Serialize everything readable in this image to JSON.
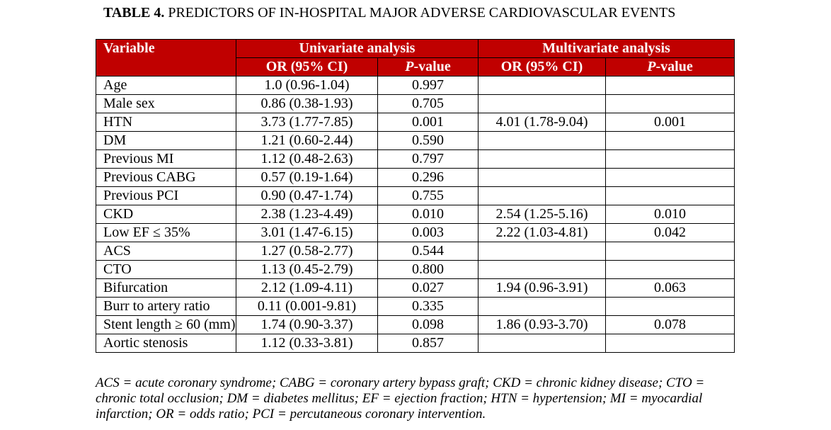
{
  "caption": {
    "label": "TABLE 4.",
    "title": " PREDICTORS OF IN-HOSPITAL MAJOR ADVERSE CARDIOVASCULAR EVENTS"
  },
  "table": {
    "headers": {
      "variable": "Variable",
      "univariate": "Univariate analysis",
      "multivariate": "Multivariate analysis",
      "or_ci": "OR (95% CI)",
      "p_italic": "P",
      "p_suffix": "-value"
    },
    "rows": [
      {
        "variable": "Age",
        "uni_or": "1.0 (0.96-1.04)",
        "uni_p": "0.997",
        "multi_or": "",
        "multi_p": ""
      },
      {
        "variable": "Male sex",
        "uni_or": "0.86 (0.38-1.93)",
        "uni_p": "0.705",
        "multi_or": "",
        "multi_p": ""
      },
      {
        "variable": "HTN",
        "uni_or": "3.73 (1.77-7.85)",
        "uni_p": "0.001",
        "multi_or": "4.01 (1.78-9.04)",
        "multi_p": "0.001"
      },
      {
        "variable": "DM",
        "uni_or": "1.21 (0.60-2.44)",
        "uni_p": "0.590",
        "multi_or": "",
        "multi_p": ""
      },
      {
        "variable": "Previous MI",
        "uni_or": "1.12 (0.48-2.63)",
        "uni_p": "0.797",
        "multi_or": "",
        "multi_p": ""
      },
      {
        "variable": "Previous CABG",
        "uni_or": "0.57 (0.19-1.64)",
        "uni_p": "0.296",
        "multi_or": "",
        "multi_p": ""
      },
      {
        "variable": "Previous PCI",
        "uni_or": "0.90 (0.47-1.74)",
        "uni_p": "0.755",
        "multi_or": "",
        "multi_p": ""
      },
      {
        "variable": "CKD",
        "uni_or": "2.38 (1.23-4.49)",
        "uni_p": "0.010",
        "multi_or": "2.54 (1.25-5.16)",
        "multi_p": "0.010"
      },
      {
        "variable": "Low EF ≤ 35%",
        "uni_or": "3.01 (1.47-6.15)",
        "uni_p": "0.003",
        "multi_or": "2.22 (1.03-4.81)",
        "multi_p": "0.042"
      },
      {
        "variable": "ACS",
        "uni_or": "1.27 (0.58-2.77)",
        "uni_p": "0.544",
        "multi_or": "",
        "multi_p": ""
      },
      {
        "variable": "CTO",
        "uni_or": "1.13 (0.45-2.79)",
        "uni_p": "0.800",
        "multi_or": "",
        "multi_p": ""
      },
      {
        "variable": "Bifurcation",
        "uni_or": "2.12 (1.09-4.11)",
        "uni_p": "0.027",
        "multi_or": "1.94 (0.96-3.91)",
        "multi_p": "0.063"
      },
      {
        "variable": "Burr to artery ratio",
        "uni_or": "0.11 (0.001-9.81)",
        "uni_p": "0.335",
        "multi_or": "",
        "multi_p": ""
      },
      {
        "variable": "Stent length ≥ 60 (mm)",
        "uni_or": "1.74 (0.90-3.37)",
        "uni_p": "0.098",
        "multi_or": "1.86 (0.93-3.70)",
        "multi_p": "0.078"
      },
      {
        "variable": "Aortic stenosis",
        "uni_or": "1.12 (0.33-3.81)",
        "uni_p": "0.857",
        "multi_or": "",
        "multi_p": ""
      }
    ]
  },
  "footnote": "ACS = acute coronary syndrome; CABG = coronary artery bypass graft; CKD = chronic kidney disease; CTO = chronic total occlusion; DM = diabetes mellitus; EF = ejection fraction; HTN = hypertension; MI = myocardial infarction; OR = odds ratio; PCI = percutaneous coronary intervention.",
  "colors": {
    "header_bg": "#c00000",
    "header_text": "#ffffff"
  }
}
